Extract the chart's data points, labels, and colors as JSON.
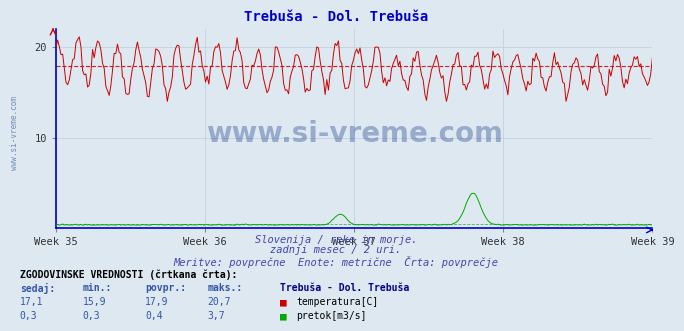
{
  "title": "Trebuša - Dol. Trebuša",
  "title_color": "#0000cc",
  "bg_color": "#dde8f0",
  "plot_bg_color": "#dde8f0",
  "x_label_weeks": [
    "Week 35",
    "Week 36",
    "Week 37",
    "Week 38",
    "Week 39"
  ],
  "grid_color": "#bbccdd",
  "temp_color": "#cc0000",
  "flow_color": "#00aa00",
  "blue_axis_color": "#0000cc",
  "temp_avg": 17.9,
  "temp_min": 15.9,
  "temp_max": 20.7,
  "temp_current": 17.1,
  "flow_avg": 0.4,
  "flow_min": 0.3,
  "flow_max": 3.7,
  "flow_current": 0.3,
  "n_points": 360,
  "ymax": 22,
  "subtitle1": "Slovenija / reke in morje.",
  "subtitle2": "zadnji mesec / 2 uri.",
  "subtitle3": "Meritve: povprečne  Enote: metrične  Črta: povprečje",
  "subtitle_color": "#4444aa",
  "table_header": "ZGODOVINSKE VREDNOSTI (črtkana črta):",
  "table_col1": "sedaj:",
  "table_col2": "min.:",
  "table_col3": "povpr.:",
  "table_col4": "maks.:",
  "table_station": "Trebuša - Dol. Trebuša",
  "legend1": "temperatura[C]",
  "legend2": "pretok[m3/s]",
  "watermark": "www.si-vreme.com",
  "watermark_color": "#1a3a8a",
  "side_watermark": "www.si-vreme.com",
  "side_watermark_color": "#5577aa"
}
